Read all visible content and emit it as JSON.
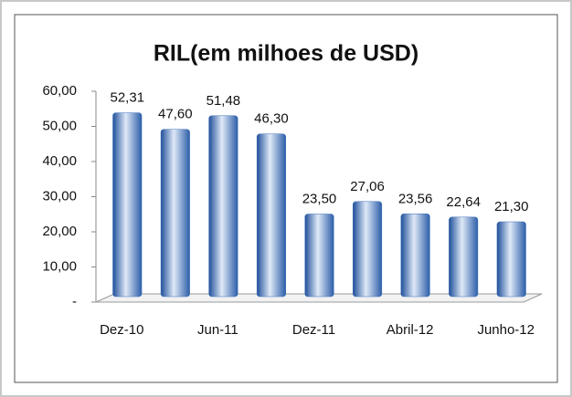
{
  "chart_data": {
    "type": "bar",
    "title": "RIL(em milhoes de USD)",
    "categories": [
      "Dez-10",
      null,
      "Jun-11",
      null,
      "Dez-11",
      null,
      "Abril-12",
      null,
      "Junho-12"
    ],
    "values": [
      52.31,
      47.6,
      51.48,
      46.3,
      23.5,
      27.06,
      23.56,
      22.64,
      21.3
    ],
    "value_labels": [
      "52,31",
      "47,60",
      "51,48",
      "46,30",
      "23,50",
      "27,06",
      "23,56",
      "22,64",
      "21,30"
    ],
    "color": "#3a6cb8",
    "ylim": [
      0,
      60
    ],
    "yticks": [
      {
        "value": 0,
        "label": "-"
      },
      {
        "value": 10,
        "label": "10,00"
      },
      {
        "value": 20,
        "label": "20,00"
      },
      {
        "value": 30,
        "label": "30,00"
      },
      {
        "value": 40,
        "label": "40,00"
      },
      {
        "value": 50,
        "label": "50,00"
      },
      {
        "value": 60,
        "label": "60,00"
      }
    ],
    "grid": false
  }
}
